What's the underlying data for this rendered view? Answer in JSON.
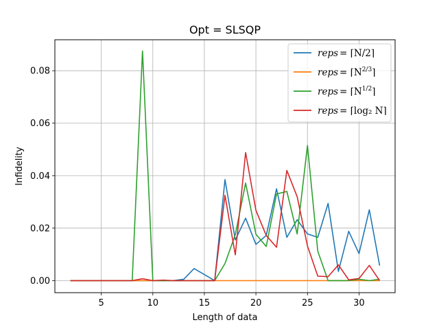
{
  "chart_data": {
    "type": "line",
    "title": "Opt = SLSQP",
    "xlabel": "Length of data",
    "ylabel": "Infidelity",
    "xlim": [
      0.5,
      33.5
    ],
    "ylim": [
      -0.0046,
      0.0918
    ],
    "xticks": [
      5,
      10,
      15,
      20,
      25,
      30
    ],
    "yticks": [
      0.0,
      0.02,
      0.04,
      0.06,
      0.08
    ],
    "ytick_labels": [
      "0.00",
      "0.02",
      "0.04",
      "0.06",
      "0.08"
    ],
    "grid": true,
    "legend_position": "top-right",
    "x": [
      2,
      3,
      4,
      5,
      6,
      7,
      8,
      9,
      10,
      11,
      12,
      13,
      14,
      15,
      16,
      17,
      18,
      19,
      20,
      21,
      22,
      23,
      24,
      25,
      26,
      27,
      28,
      29,
      30,
      31,
      32
    ],
    "series": [
      {
        "name": "reps = ⌈N/2⌉",
        "color": "#1f77b4",
        "values": [
          0,
          0,
          0,
          0,
          0,
          0,
          0,
          0,
          0,
          0,
          0,
          0.0005,
          0.0046,
          0.0023,
          0,
          0.0385,
          0.0155,
          0.0238,
          0.0138,
          0.0172,
          0.035,
          0.0165,
          0.0232,
          0.0178,
          0.0165,
          0.0294,
          0.0035,
          0.0188,
          0.0103,
          0.027,
          0.0057
        ]
      },
      {
        "name": "reps = ⌈N^{2/3}⌉",
        "color": "#ff7f0e",
        "values": [
          0,
          0,
          0,
          0,
          0,
          0,
          0,
          0,
          0,
          0,
          0,
          0,
          0,
          0,
          0,
          0,
          0,
          0,
          0,
          0,
          0,
          0,
          0,
          0,
          0,
          0,
          0,
          0,
          0,
          0,
          0
        ]
      },
      {
        "name": "reps = ⌈N^{1/2}⌉",
        "color": "#2ca02c",
        "values": [
          0,
          0,
          0,
          0,
          0,
          0,
          0,
          0.0875,
          0,
          0,
          0,
          0,
          0,
          0,
          0,
          0.0065,
          0.0175,
          0.0372,
          0.0177,
          0.013,
          0.033,
          0.034,
          0.0178,
          0.0515,
          0.0112,
          0,
          0,
          0,
          0.0005,
          0,
          0.0005
        ]
      },
      {
        "name": "reps = ⌈log₂ N⌉",
        "color": "#d62728",
        "values": [
          0,
          0,
          0,
          0,
          0,
          0,
          0,
          0.0007,
          0,
          0.0002,
          0,
          0,
          0,
          0,
          0,
          0.0325,
          0.0098,
          0.0488,
          0.0268,
          0.0172,
          0.0127,
          0.042,
          0.032,
          0.0132,
          0.0017,
          0.0015,
          0.006,
          0.0003,
          0.0008,
          0.0058,
          0
        ]
      }
    ],
    "legend_entries": [
      {
        "prefix": "reps",
        "rhs": "= ⌈N/2⌉"
      },
      {
        "prefix": "reps",
        "rhs": "= ⌈N",
        "sup": "2/3",
        "close": "⌉"
      },
      {
        "prefix": "reps",
        "rhs": "= ⌈N",
        "sup": "1/2",
        "close": "⌉"
      },
      {
        "prefix": "reps",
        "rhs": "= ⌈log₂ N⌉"
      }
    ]
  }
}
